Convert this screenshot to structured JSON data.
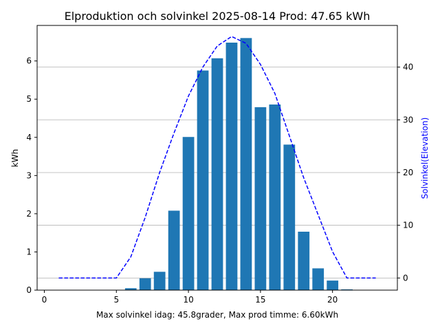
{
  "chart_data": {
    "type": "bar",
    "title": "Elproduktion och solvinkel 2025-08-14 Prod: 47.65 kWh",
    "xlabel": "Max solvinkel idag: 45.8grader, Max prod timme: 6.60kWh",
    "ylabel": "kWh",
    "y2label": "Solvinkel(Elevation)",
    "xlim": [
      -0.5,
      24.5
    ],
    "ylim": [
      0,
      6.93
    ],
    "y2lim": [
      -2.3,
      47.9
    ],
    "xticks": [
      0,
      5,
      10,
      15,
      20
    ],
    "yticks": [
      0,
      1,
      2,
      3,
      4,
      5,
      6
    ],
    "y2ticks": [
      0,
      10,
      20,
      30,
      40
    ],
    "grid": "y2-only",
    "colors": {
      "bars": "#1f77b4",
      "elevation": "#0000ff",
      "grid": "#b0b0b0"
    },
    "series": [
      {
        "type": "bar",
        "axis": "left",
        "x": [
          6,
          7,
          8,
          9,
          10,
          11,
          12,
          13,
          14,
          15,
          16,
          17,
          18,
          19,
          20,
          21
        ],
        "values": [
          0.05,
          0.31,
          0.48,
          2.08,
          4.01,
          5.75,
          6.07,
          6.48,
          6.6,
          4.79,
          4.86,
          3.81,
          1.53,
          0.57,
          0.25,
          0.02
        ]
      },
      {
        "type": "line",
        "axis": "right",
        "style": "dashed",
        "x": [
          1,
          2,
          3,
          4,
          5,
          6,
          7,
          8,
          9,
          10,
          11,
          12,
          13,
          14,
          15,
          16,
          17,
          18,
          19,
          20,
          21,
          22,
          23
        ],
        "values": [
          0,
          0,
          0,
          0,
          0,
          4.0,
          11.5,
          20.0,
          27.5,
          34.5,
          40.0,
          44.0,
          45.8,
          44.5,
          40.5,
          35.0,
          27.0,
          19.0,
          12.0,
          5.0,
          0,
          0,
          0
        ]
      }
    ]
  }
}
